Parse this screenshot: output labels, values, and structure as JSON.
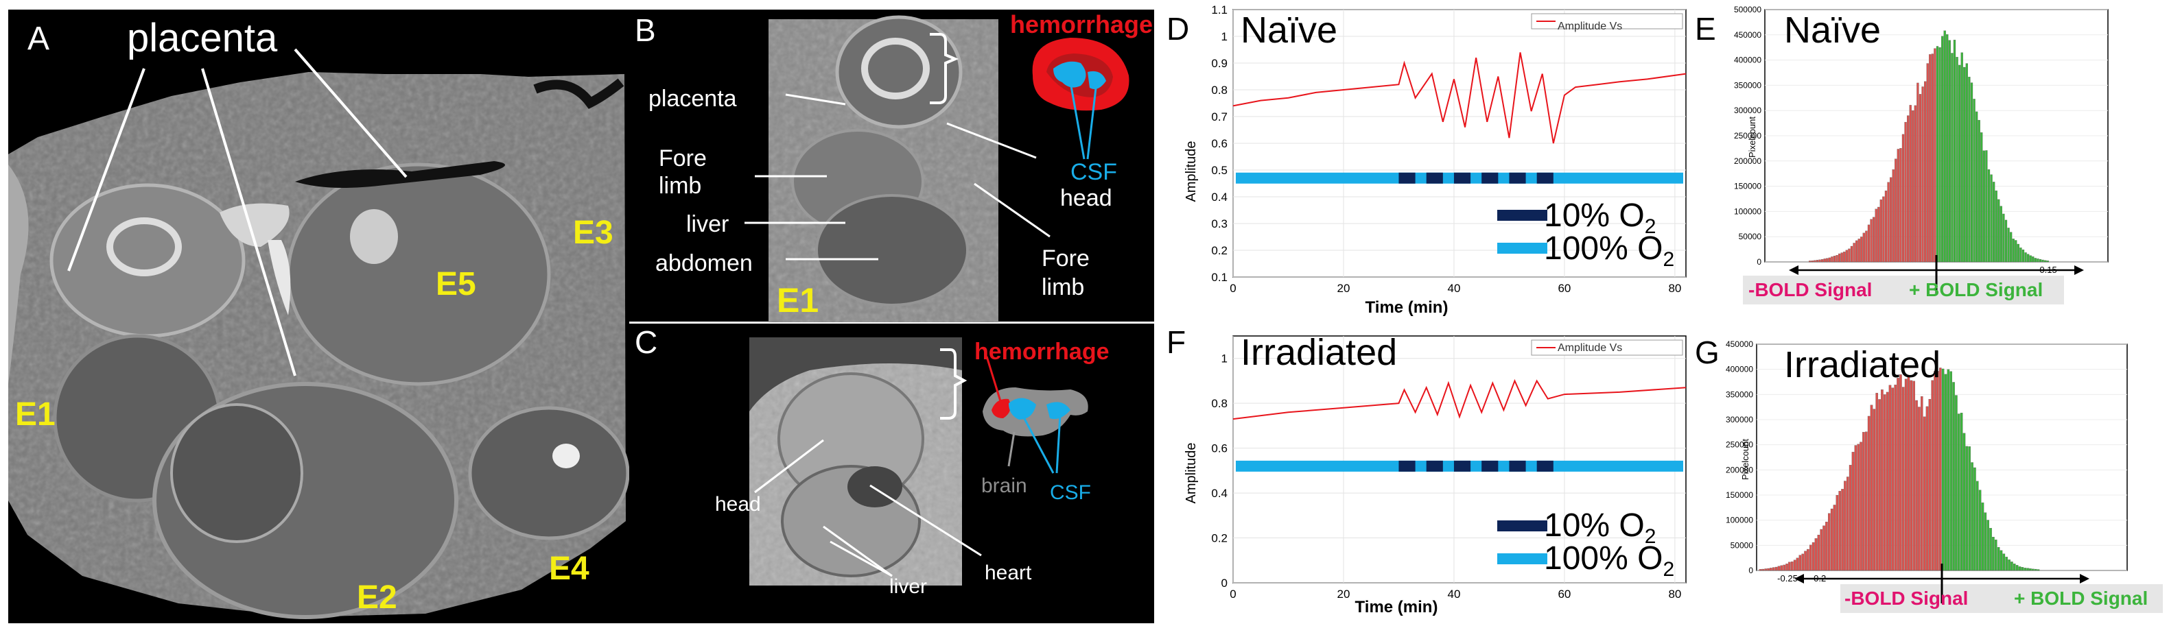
{
  "panels": {
    "A": {
      "letter": "A",
      "placenta_label": "placenta",
      "embryos": [
        "E1",
        "E2",
        "E3",
        "E4",
        "E5"
      ]
    },
    "B": {
      "letter": "B",
      "labels": {
        "placenta": "placenta",
        "fore_limb_1": "Fore",
        "fore_limb_2": "limb",
        "liver": "liver",
        "abdomen": "abdomen",
        "fore_limb_r1": "Fore",
        "fore_limb_r2": "limb",
        "head": "head",
        "csf": "CSF",
        "hemorrhage": "hemorrhage",
        "embryo": "E1"
      }
    },
    "C": {
      "letter": "C",
      "labels": {
        "head": "head",
        "liver": "liver",
        "heart": "heart",
        "brain": "brain",
        "csf": "CSF",
        "hemorrhage": "hemorrhage"
      }
    },
    "D": {
      "letter": "D",
      "title": "Naïve",
      "legend": "Amplitude Vs",
      "ylabel": "Amplitude",
      "xlabel": "Time (min)",
      "key_low": "10% O",
      "key_high": "100% O",
      "key_sub": "2"
    },
    "E": {
      "letter": "E",
      "title": "Naïve",
      "ylabel": "Pixelcount",
      "neg_label": "-BOLD Signal",
      "pos_label": "+ BOLD Signal"
    },
    "F": {
      "letter": "F",
      "title": "Irradiated",
      "legend": "Amplitude Vs",
      "ylabel": "Amplitude",
      "xlabel": "Time (min)",
      "key_low": "10% O",
      "key_high": "100% O",
      "key_sub": "2"
    },
    "G": {
      "letter": "G",
      "title": "Irradiated",
      "ylabel": "Pixelcount",
      "neg_label": "-BOLD Signal",
      "pos_label": "+ BOLD Signal"
    }
  },
  "colors": {
    "red": "#e8141b",
    "green": "#3cb43c",
    "histred": "#d9534f",
    "cyan": "#19ade8",
    "navy": "#0d2457",
    "pink": "#e0136e",
    "yellow": "#f4ee14"
  },
  "chart_data": [
    {
      "id": "D",
      "type": "line",
      "title": "Naïve",
      "xlabel": "Time (min)",
      "ylabel": "Amplitude",
      "xlim": [
        0,
        82
      ],
      "ylim": [
        0.1,
        1.1
      ],
      "xticks": [
        0,
        20,
        40,
        60,
        80
      ],
      "yticks": [
        0.1,
        0.2,
        0.3,
        0.4,
        0.5,
        0.6,
        0.7,
        0.8,
        0.9,
        1,
        1.1
      ],
      "legend": "Amplitude Vs",
      "series_points": [
        [
          0,
          0.74
        ],
        [
          5,
          0.76
        ],
        [
          10,
          0.77
        ],
        [
          15,
          0.79
        ],
        [
          20,
          0.8
        ],
        [
          25,
          0.81
        ],
        [
          30,
          0.82
        ],
        [
          31,
          0.9
        ],
        [
          33,
          0.77
        ],
        [
          36,
          0.86
        ],
        [
          38,
          0.68
        ],
        [
          40,
          0.84
        ],
        [
          42,
          0.66
        ],
        [
          44,
          0.92
        ],
        [
          46,
          0.68
        ],
        [
          48,
          0.85
        ],
        [
          50,
          0.62
        ],
        [
          52,
          0.94
        ],
        [
          54,
          0.72
        ],
        [
          56,
          0.86
        ],
        [
          58,
          0.6
        ],
        [
          60,
          0.78
        ],
        [
          62,
          0.81
        ],
        [
          66,
          0.82
        ],
        [
          70,
          0.83
        ],
        [
          75,
          0.84
        ],
        [
          82,
          0.86
        ]
      ],
      "oxygen_band_y": 0.47,
      "hypoxia_intervals": [
        [
          30,
          33
        ],
        [
          35,
          38
        ],
        [
          40,
          43
        ],
        [
          45,
          48
        ],
        [
          50,
          53
        ],
        [
          55,
          58
        ]
      ]
    },
    {
      "id": "E",
      "type": "bar",
      "title": "Naïve",
      "ylabel": "Pixelcount",
      "xlim": [
        -0.23,
        0.23
      ],
      "ylim": [
        0,
        500000
      ],
      "xticks": [
        0.15
      ],
      "yticks": [
        0,
        50000,
        100000,
        150000,
        200000,
        250000,
        300000,
        350000,
        400000,
        450000,
        500000
      ],
      "peak_x": 0.02,
      "peak_y": 455000,
      "split_x": 0
    },
    {
      "id": "F",
      "type": "line",
      "title": "Irradiated",
      "xlabel": "Time (min)",
      "ylabel": "Amplitude",
      "xlim": [
        0,
        82
      ],
      "ylim": [
        0,
        1.1
      ],
      "xticks": [
        0,
        20,
        40,
        60,
        80
      ],
      "yticks": [
        0,
        0.2,
        0.4,
        0.6,
        0.8,
        1
      ],
      "legend": "Amplitude Vs",
      "series_points": [
        [
          0,
          0.73
        ],
        [
          10,
          0.76
        ],
        [
          20,
          0.78
        ],
        [
          30,
          0.8
        ],
        [
          31,
          0.86
        ],
        [
          33,
          0.76
        ],
        [
          35,
          0.87
        ],
        [
          37,
          0.75
        ],
        [
          39,
          0.89
        ],
        [
          41,
          0.74
        ],
        [
          43,
          0.88
        ],
        [
          45,
          0.76
        ],
        [
          47,
          0.89
        ],
        [
          49,
          0.77
        ],
        [
          51,
          0.9
        ],
        [
          53,
          0.79
        ],
        [
          55,
          0.9
        ],
        [
          57,
          0.82
        ],
        [
          60,
          0.84
        ],
        [
          70,
          0.85
        ],
        [
          82,
          0.87
        ]
      ],
      "oxygen_band_y": 0.52,
      "hypoxia_intervals": [
        [
          30,
          33
        ],
        [
          35,
          38
        ],
        [
          40,
          43
        ],
        [
          45,
          48
        ],
        [
          50,
          53
        ],
        [
          55,
          58
        ]
      ]
    },
    {
      "id": "G",
      "type": "bar",
      "title": "Irradiated",
      "ylabel": "Pixelcount",
      "xlim": [
        -0.3,
        0.3
      ],
      "ylim": [
        0,
        450000
      ],
      "xticks": [
        -0.25,
        -0.2
      ],
      "yticks": [
        0,
        50000,
        100000,
        150000,
        200000,
        250000,
        300000,
        350000,
        400000,
        450000
      ],
      "peaks": [
        [
          -0.07,
          410000
        ],
        [
          0.0,
          420000
        ]
      ],
      "split_x": 0
    }
  ]
}
